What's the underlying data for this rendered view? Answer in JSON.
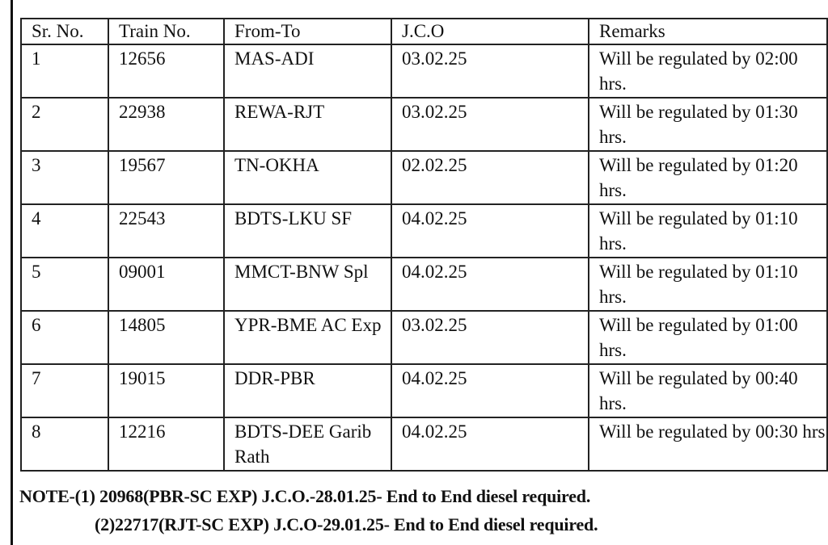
{
  "table": {
    "headers": [
      "Sr. No.",
      "Train No.",
      "From-To",
      "J.C.O",
      "Remarks"
    ],
    "rows": [
      {
        "sr": "1",
        "train": "12656",
        "from_to": "MAS-ADI",
        "jco": "03.02.25",
        "remarks": "Will be regulated by 02:00 hrs."
      },
      {
        "sr": "2",
        "train": "22938",
        "from_to": "REWA-RJT",
        "jco": "03.02.25",
        "remarks": "Will be regulated by 01:30 hrs."
      },
      {
        "sr": "3",
        "train": "19567",
        "from_to": "TN-OKHA",
        "jco": "02.02.25",
        "remarks": "Will be regulated by 01:20 hrs."
      },
      {
        "sr": "4",
        "train": "22543",
        "from_to": "BDTS-LKU SF",
        "jco": "04.02.25",
        "remarks": "Will be regulated by 01:10 hrs."
      },
      {
        "sr": "5",
        "train": "09001",
        "from_to": "MMCT-BNW Spl",
        "jco": "04.02.25",
        "remarks": "Will be regulated by 01:10 hrs."
      },
      {
        "sr": "6",
        "train": "14805",
        "from_to": "YPR-BME AC Exp",
        "jco": "03.02.25",
        "remarks": "Will be regulated by 01:00 hrs."
      },
      {
        "sr": "7",
        "train": "19015",
        "from_to": "DDR-PBR",
        "jco": "04.02.25",
        "remarks": "Will be regulated by 00:40 hrs."
      },
      {
        "sr": "8",
        "train": "12216",
        "from_to": "BDTS-DEE Garib Rath",
        "jco": "04.02.25",
        "remarks": "Will be regulated by 00:30 hrs"
      }
    ]
  },
  "notes": [
    "NOTE-(1) 20968(PBR-SC EXP) J.C.O.-28.01.25- End to End diesel required.",
    "(2)22717(RJT-SC EXP) J.C.O-29.01.25- End to End diesel required."
  ]
}
